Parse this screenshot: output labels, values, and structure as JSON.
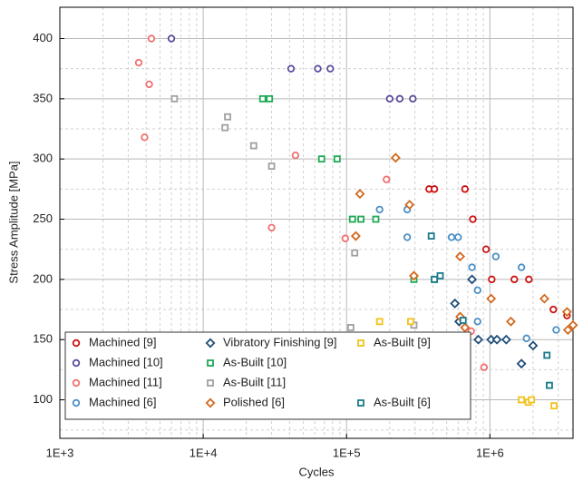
{
  "chart_data": {
    "type": "scatter",
    "x_label": "Cycles",
    "y_label": "Stress Amplitude [MPa]",
    "xscale": "log",
    "xlim": [
      1000,
      3800000
    ],
    "ylim": [
      68,
      426
    ],
    "xticks": [
      {
        "value": 1000,
        "label": "1E+3"
      },
      {
        "value": 10000,
        "label": "1E+4"
      },
      {
        "value": 100000,
        "label": "1E+5"
      },
      {
        "value": 1000000,
        "label": "1E+6"
      }
    ],
    "yticks": [
      100,
      150,
      200,
      250,
      300,
      350,
      400
    ],
    "grid": true,
    "minor_grid": true,
    "legend": "lower left",
    "series": [
      {
        "name": "Machined [9]",
        "color": "#cc1111",
        "marker": "circle",
        "x": [
          377000,
          410000,
          670000,
          760000,
          940000,
          1030000,
          1480000,
          1870000,
          2770000,
          3450000
        ],
        "values": [
          275,
          275,
          275,
          250,
          225,
          200,
          200,
          200,
          175,
          170
        ]
      },
      {
        "name": "Machined [10]",
        "color": "#5b4a9b",
        "marker": "circle",
        "x": [
          6000,
          41000,
          63000,
          77000,
          200000,
          235000,
          290000
        ],
        "values": [
          400,
          375,
          375,
          375,
          350,
          350,
          350
        ]
      },
      {
        "name": "Machined [11]",
        "color": "#f07070",
        "marker": "circle",
        "x": [
          4350,
          3550,
          4200,
          3900,
          30000,
          44000,
          98000,
          190000,
          740000,
          910000
        ],
        "values": [
          400,
          380,
          362,
          318,
          243,
          303,
          234,
          283,
          157,
          127
        ]
      },
      {
        "name": "Machined [6]",
        "color": "#4a8fc6",
        "marker": "circle",
        "x": [
          170000,
          265000,
          265000,
          540000,
          600000,
          750000,
          1100000,
          1660000,
          820000,
          820000,
          1800000,
          2900000
        ],
        "values": [
          258,
          258,
          235,
          235,
          235,
          210,
          219,
          210,
          191,
          165,
          151,
          158
        ]
      },
      {
        "name": "Vibratory Finishing [9]",
        "color": "#1f4e79",
        "marker": "diamond",
        "x": [
          570000,
          750000,
          610000,
          830000,
          1020000,
          1120000,
          1300000,
          1660000,
          2000000
        ],
        "values": [
          180,
          200,
          165,
          150,
          150,
          150,
          150,
          130,
          145
        ]
      },
      {
        "name": "As-Built [10]",
        "color": "#1faa55",
        "marker": "square",
        "x": [
          26000,
          29000,
          67000,
          86000,
          110000,
          126000,
          160000,
          295000,
          410000
        ],
        "values": [
          350,
          350,
          300,
          300,
          250,
          250,
          250,
          200,
          200
        ]
      },
      {
        "name": "As-Built [11]",
        "color": "#a0a0a0",
        "marker": "square",
        "x": [
          6300,
          14800,
          14200,
          22500,
          30000,
          114000,
          107000,
          295000
        ],
        "values": [
          350,
          335,
          326,
          311,
          294,
          222,
          160,
          162
        ]
      },
      {
        "name": "Polished [6]",
        "color": "#d2691e",
        "marker": "diamond",
        "x": [
          124000,
          220000,
          275000,
          116000,
          295000,
          620000,
          1020000,
          1400000,
          2400000,
          3450000,
          620000,
          670000,
          3500000,
          3800000
        ],
        "values": [
          271,
          301,
          262,
          236,
          203,
          219,
          184,
          165,
          184,
          173,
          169,
          160,
          158,
          162
        ]
      },
      {
        "name": "As-Built [9]",
        "color": "#f2c21b",
        "marker": "square",
        "x": [
          170000,
          280000,
          1660000,
          1850000,
          1950000,
          2800000
        ],
        "values": [
          165,
          165,
          100,
          98,
          100,
          95
        ]
      },
      {
        "name": "As-Built [6]",
        "color": "#1a7a8a",
        "marker": "square",
        "x": [
          390000,
          410000,
          450000,
          650000,
          2500000,
          2600000
        ],
        "values": [
          236,
          200,
          203,
          166,
          137,
          112
        ]
      }
    ]
  }
}
